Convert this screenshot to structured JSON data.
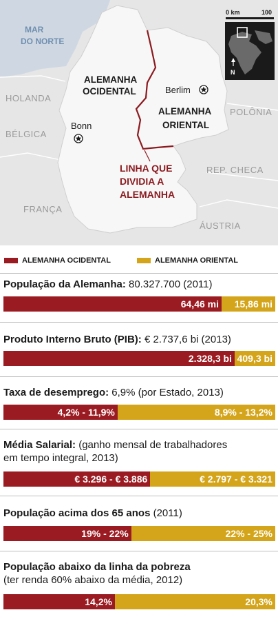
{
  "colors": {
    "west": "#9b1b22",
    "east": "#d4a51a",
    "border_line": "#8b1a1f"
  },
  "map": {
    "sea": "MAR DO NORTE",
    "countries": [
      "HOLANDA",
      "BÉLGICA",
      "FRANÇA",
      "POLÔNIA",
      "REP. CHECA",
      "ÁUSTRIA"
    ],
    "regions": {
      "west": "ALEMANHA OCIDENTAL",
      "east": "ALEMANHA ORIENTAL"
    },
    "cities": {
      "berlin": "Berlim",
      "bonn": "Bonn"
    },
    "line_label": [
      "LINHA QUE",
      "DIVIDIA A",
      "ALEMANHA"
    ],
    "scale": {
      "start": "0 km",
      "end": "100"
    },
    "north": "N"
  },
  "legend": {
    "west": "ALEMANHA OCIDENTAL",
    "east": "ALEMANHA ORIENTAL"
  },
  "chart_data": [
    {
      "type": "bar",
      "title": "População da Alemanha:",
      "subtitle": "80.327.700 (2011)",
      "values": [
        64.46,
        15.86
      ],
      "labels": [
        "64,46 mi",
        "15,86 mi"
      ]
    },
    {
      "type": "bar",
      "title": "Produto Interno Bruto (PIB):",
      "subtitle": "€ 2.737,6 bi (2013)",
      "values": [
        2328.3,
        409.3
      ],
      "labels": [
        "2.328,3 bi",
        "409,3 bi"
      ]
    },
    {
      "type": "bar",
      "title": "Taxa de desemprego:",
      "subtitle": "6,9% (por Estado, 2013)",
      "values": [
        42,
        58
      ],
      "labels": [
        "4,2% - 11,9%",
        "8,9% - 13,2%"
      ]
    },
    {
      "type": "bar",
      "title": "Média Salarial:",
      "subtitle": "(ganho mensal de trabalhadores",
      "subtitle2": "em tempo integral, 2013)",
      "values": [
        54,
        46
      ],
      "labels": [
        "€ 3.296 - € 3.886",
        "€ 2.797 - € 3.321"
      ]
    },
    {
      "type": "bar",
      "title": "População acima dos 65 anos",
      "subtitle": "(2011)",
      "values": [
        47,
        53
      ],
      "labels": [
        "19% - 22%",
        "22% - 25%"
      ]
    },
    {
      "type": "bar",
      "title": "População abaixo da linha da pobreza",
      "subtitle": "(ter renda 60% abaixo da média, 2012)",
      "values": [
        41,
        59
      ],
      "labels": [
        "14,2%",
        "20,3%"
      ]
    }
  ]
}
